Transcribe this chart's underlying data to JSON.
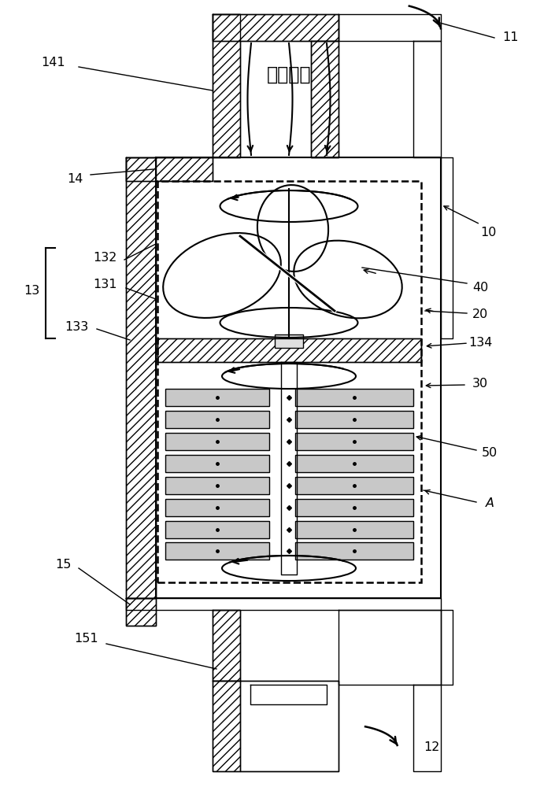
{
  "bg_color": "#ffffff",
  "line_color": "#000000",
  "labels": [
    "11",
    "141",
    "14",
    "10",
    "40",
    "20",
    "134",
    "132",
    "131",
    "133",
    "13",
    "30",
    "50",
    "A",
    "15",
    "151",
    "12"
  ],
  "title_text": "液体流向"
}
